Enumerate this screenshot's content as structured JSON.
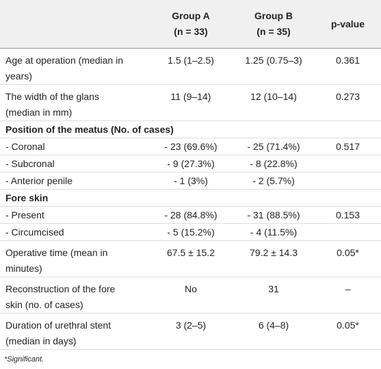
{
  "table": {
    "header": [
      "",
      [
        "Group A",
        "(n = 33)"
      ],
      [
        "Group B",
        "(n = 35)"
      ],
      [
        "p-value"
      ]
    ],
    "rows": [
      [
        [
          "Age at operation (median in",
          "years)"
        ],
        "1.5 (1–2.5)",
        "1.25 (0.75–3)",
        "0.361"
      ],
      [
        [
          "The width of the glans",
          "(median in mm)"
        ],
        "11 (9–14)",
        "12 (10–14)",
        "0.273"
      ],
      [
        [
          "Position of the meatus (No. of cases)"
        ]
      ],
      [
        [
          "- Coronal"
        ],
        "- 23 (69.6%)",
        "- 25 (71.4%)",
        "0.517"
      ],
      [
        [
          "- Subcronal"
        ],
        "- 9 (27.3%)",
        "- 8 (22.8%)",
        ""
      ],
      [
        [
          "- Anterior penile"
        ],
        "- 1 (3%)",
        "- 2 (5.7%)",
        ""
      ],
      [
        [
          "Fore skin"
        ]
      ],
      [
        [
          "- Present"
        ],
        "- 28 (84.8%)",
        "- 31 (88.5%)",
        "0.153"
      ],
      [
        [
          "- Circumcised"
        ],
        "- 5 (15.2%)",
        "- 4 (11.5%)",
        ""
      ],
      [
        [
          "Operative time (mean in",
          "minutes)"
        ],
        "67.5 ± 15.2",
        "79.2 ± 14.3",
        "0.05*"
      ],
      [
        [
          "Reconstruction of the fore",
          "skin (no. of cases)"
        ],
        "No",
        "31",
        "–"
      ],
      [
        [
          "Duration of urethral stent",
          "(median in days)"
        ],
        "3 (2–5)",
        "6 (4–8)",
        "0.05*"
      ]
    ],
    "footnote": "*Significant."
  }
}
